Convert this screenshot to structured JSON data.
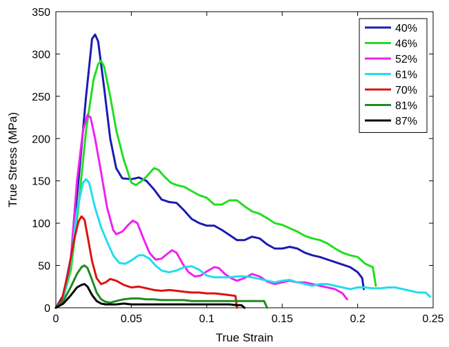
{
  "chart_data": {
    "type": "line",
    "xlabel": "True Strain",
    "ylabel": "True Stress (MPa)",
    "xlim": [
      0,
      0.25
    ],
    "ylim": [
      0,
      350
    ],
    "x_ticks": [
      0,
      0.05,
      0.1,
      0.15,
      0.2,
      0.25
    ],
    "x_tick_labels": [
      "0",
      "0.05",
      "0.1",
      "0.15",
      "0.2",
      "0.25"
    ],
    "y_ticks": [
      0,
      50,
      100,
      150,
      200,
      250,
      300,
      350
    ],
    "y_tick_labels": [
      "0",
      "50",
      "100",
      "150",
      "200",
      "250",
      "300",
      "350"
    ],
    "grid": false,
    "legend_position": "top-right",
    "series": [
      {
        "name": "40%",
        "color": "#1a1ab4",
        "points": [
          [
            0,
            0
          ],
          [
            0.005,
            15
          ],
          [
            0.01,
            60
          ],
          [
            0.015,
            150
          ],
          [
            0.02,
            250
          ],
          [
            0.024,
            318
          ],
          [
            0.026,
            323
          ],
          [
            0.028,
            315
          ],
          [
            0.032,
            260
          ],
          [
            0.036,
            200
          ],
          [
            0.04,
            165
          ],
          [
            0.044,
            153
          ],
          [
            0.05,
            152
          ],
          [
            0.055,
            154
          ],
          [
            0.06,
            150
          ],
          [
            0.065,
            140
          ],
          [
            0.07,
            128
          ],
          [
            0.075,
            125
          ],
          [
            0.08,
            124
          ],
          [
            0.085,
            115
          ],
          [
            0.09,
            105
          ],
          [
            0.095,
            100
          ],
          [
            0.1,
            97
          ],
          [
            0.105,
            97
          ],
          [
            0.11,
            92
          ],
          [
            0.115,
            86
          ],
          [
            0.12,
            80
          ],
          [
            0.125,
            80
          ],
          [
            0.13,
            84
          ],
          [
            0.135,
            82
          ],
          [
            0.14,
            75
          ],
          [
            0.145,
            70
          ],
          [
            0.15,
            70
          ],
          [
            0.155,
            72
          ],
          [
            0.16,
            70
          ],
          [
            0.165,
            65
          ],
          [
            0.17,
            62
          ],
          [
            0.175,
            60
          ],
          [
            0.18,
            57
          ],
          [
            0.185,
            54
          ],
          [
            0.19,
            51
          ],
          [
            0.195,
            48
          ],
          [
            0.2,
            42
          ],
          [
            0.203,
            35
          ],
          [
            0.204,
            22
          ]
        ]
      },
      {
        "name": "46%",
        "color": "#22dd22",
        "points": [
          [
            0,
            0
          ],
          [
            0.005,
            12
          ],
          [
            0.01,
            45
          ],
          [
            0.015,
            120
          ],
          [
            0.02,
            210
          ],
          [
            0.025,
            270
          ],
          [
            0.028,
            288
          ],
          [
            0.03,
            292
          ],
          [
            0.032,
            285
          ],
          [
            0.036,
            250
          ],
          [
            0.04,
            210
          ],
          [
            0.045,
            175
          ],
          [
            0.05,
            148
          ],
          [
            0.053,
            145
          ],
          [
            0.057,
            150
          ],
          [
            0.06,
            155
          ],
          [
            0.065,
            165
          ],
          [
            0.068,
            163
          ],
          [
            0.072,
            155
          ],
          [
            0.076,
            148
          ],
          [
            0.08,
            145
          ],
          [
            0.085,
            143
          ],
          [
            0.09,
            138
          ],
          [
            0.095,
            133
          ],
          [
            0.1,
            130
          ],
          [
            0.105,
            122
          ],
          [
            0.11,
            122
          ],
          [
            0.115,
            127
          ],
          [
            0.12,
            127
          ],
          [
            0.125,
            120
          ],
          [
            0.13,
            114
          ],
          [
            0.135,
            111
          ],
          [
            0.14,
            106
          ],
          [
            0.145,
            100
          ],
          [
            0.15,
            98
          ],
          [
            0.155,
            94
          ],
          [
            0.16,
            90
          ],
          [
            0.165,
            85
          ],
          [
            0.17,
            82
          ],
          [
            0.175,
            80
          ],
          [
            0.18,
            76
          ],
          [
            0.185,
            70
          ],
          [
            0.19,
            65
          ],
          [
            0.195,
            62
          ],
          [
            0.2,
            60
          ],
          [
            0.205,
            52
          ],
          [
            0.21,
            48
          ],
          [
            0.212,
            26
          ]
        ]
      },
      {
        "name": "52%",
        "color": "#ee22ee",
        "points": [
          [
            0,
            0
          ],
          [
            0.005,
            10
          ],
          [
            0.01,
            60
          ],
          [
            0.014,
            150
          ],
          [
            0.018,
            210
          ],
          [
            0.021,
            228
          ],
          [
            0.023,
            225
          ],
          [
            0.026,
            200
          ],
          [
            0.03,
            160
          ],
          [
            0.034,
            118
          ],
          [
            0.038,
            92
          ],
          [
            0.04,
            87
          ],
          [
            0.044,
            90
          ],
          [
            0.048,
            98
          ],
          [
            0.051,
            103
          ],
          [
            0.054,
            100
          ],
          [
            0.058,
            82
          ],
          [
            0.062,
            65
          ],
          [
            0.066,
            57
          ],
          [
            0.07,
            58
          ],
          [
            0.074,
            64
          ],
          [
            0.077,
            68
          ],
          [
            0.08,
            65
          ],
          [
            0.084,
            52
          ],
          [
            0.088,
            42
          ],
          [
            0.092,
            37
          ],
          [
            0.096,
            38
          ],
          [
            0.1,
            43
          ],
          [
            0.105,
            48
          ],
          [
            0.108,
            47
          ],
          [
            0.112,
            40
          ],
          [
            0.116,
            35
          ],
          [
            0.12,
            32
          ],
          [
            0.125,
            35
          ],
          [
            0.13,
            40
          ],
          [
            0.135,
            37
          ],
          [
            0.14,
            31
          ],
          [
            0.145,
            28
          ],
          [
            0.15,
            30
          ],
          [
            0.155,
            32
          ],
          [
            0.16,
            30
          ],
          [
            0.165,
            30
          ],
          [
            0.17,
            28
          ],
          [
            0.175,
            26
          ],
          [
            0.18,
            24
          ],
          [
            0.185,
            22
          ],
          [
            0.19,
            17
          ],
          [
            0.193,
            10
          ]
        ]
      },
      {
        "name": "61%",
        "color": "#22ddee",
        "points": [
          [
            0,
            0
          ],
          [
            0.005,
            10
          ],
          [
            0.01,
            55
          ],
          [
            0.014,
            115
          ],
          [
            0.018,
            148
          ],
          [
            0.02,
            152
          ],
          [
            0.022,
            148
          ],
          [
            0.026,
            118
          ],
          [
            0.03,
            95
          ],
          [
            0.034,
            78
          ],
          [
            0.038,
            62
          ],
          [
            0.042,
            53
          ],
          [
            0.046,
            52
          ],
          [
            0.05,
            56
          ],
          [
            0.055,
            62
          ],
          [
            0.058,
            62
          ],
          [
            0.062,
            58
          ],
          [
            0.066,
            50
          ],
          [
            0.07,
            44
          ],
          [
            0.075,
            42
          ],
          [
            0.08,
            44
          ],
          [
            0.085,
            48
          ],
          [
            0.09,
            49
          ],
          [
            0.095,
            45
          ],
          [
            0.1,
            38
          ],
          [
            0.105,
            36
          ],
          [
            0.11,
            36
          ],
          [
            0.115,
            36
          ],
          [
            0.12,
            37
          ],
          [
            0.125,
            37
          ],
          [
            0.13,
            36
          ],
          [
            0.135,
            34
          ],
          [
            0.14,
            32
          ],
          [
            0.145,
            30
          ],
          [
            0.15,
            32
          ],
          [
            0.155,
            33
          ],
          [
            0.16,
            30
          ],
          [
            0.165,
            28
          ],
          [
            0.17,
            26
          ],
          [
            0.175,
            28
          ],
          [
            0.18,
            28
          ],
          [
            0.185,
            26
          ],
          [
            0.19,
            24
          ],
          [
            0.195,
            22
          ],
          [
            0.2,
            24
          ],
          [
            0.205,
            24
          ],
          [
            0.21,
            23
          ],
          [
            0.215,
            23
          ],
          [
            0.22,
            24
          ],
          [
            0.225,
            24
          ],
          [
            0.23,
            22
          ],
          [
            0.235,
            20
          ],
          [
            0.24,
            18
          ],
          [
            0.245,
            18
          ],
          [
            0.248,
            13
          ]
        ]
      },
      {
        "name": "70%",
        "color": "#dd1111",
        "points": [
          [
            0,
            0
          ],
          [
            0.004,
            10
          ],
          [
            0.008,
            40
          ],
          [
            0.012,
            80
          ],
          [
            0.015,
            102
          ],
          [
            0.017,
            108
          ],
          [
            0.019,
            104
          ],
          [
            0.021,
            85
          ],
          [
            0.024,
            55
          ],
          [
            0.027,
            35
          ],
          [
            0.03,
            28
          ],
          [
            0.033,
            30
          ],
          [
            0.036,
            34
          ],
          [
            0.04,
            32
          ],
          [
            0.045,
            27
          ],
          [
            0.05,
            24
          ],
          [
            0.055,
            25
          ],
          [
            0.06,
            23
          ],
          [
            0.065,
            21
          ],
          [
            0.07,
            20
          ],
          [
            0.075,
            21
          ],
          [
            0.08,
            20
          ],
          [
            0.085,
            19
          ],
          [
            0.09,
            18
          ],
          [
            0.095,
            18
          ],
          [
            0.1,
            17
          ],
          [
            0.105,
            17
          ],
          [
            0.11,
            16
          ],
          [
            0.115,
            15
          ],
          [
            0.119,
            14
          ],
          [
            0.12,
            0
          ]
        ]
      },
      {
        "name": "81%",
        "color": "#1f8a1f",
        "points": [
          [
            0,
            0
          ],
          [
            0.005,
            8
          ],
          [
            0.01,
            25
          ],
          [
            0.014,
            40
          ],
          [
            0.017,
            48
          ],
          [
            0.019,
            50
          ],
          [
            0.021,
            47
          ],
          [
            0.024,
            33
          ],
          [
            0.027,
            18
          ],
          [
            0.03,
            10
          ],
          [
            0.033,
            7
          ],
          [
            0.036,
            6
          ],
          [
            0.04,
            8
          ],
          [
            0.045,
            10
          ],
          [
            0.05,
            11
          ],
          [
            0.055,
            11
          ],
          [
            0.06,
            10
          ],
          [
            0.065,
            10
          ],
          [
            0.07,
            9
          ],
          [
            0.075,
            9
          ],
          [
            0.08,
            9
          ],
          [
            0.085,
            9
          ],
          [
            0.09,
            8
          ],
          [
            0.095,
            8
          ],
          [
            0.1,
            8
          ],
          [
            0.105,
            8
          ],
          [
            0.11,
            8
          ],
          [
            0.115,
            8
          ],
          [
            0.12,
            8
          ],
          [
            0.125,
            8
          ],
          [
            0.13,
            8
          ],
          [
            0.135,
            8
          ],
          [
            0.138,
            8
          ],
          [
            0.14,
            0
          ]
        ]
      },
      {
        "name": "87%",
        "color": "#000000",
        "points": [
          [
            0,
            0
          ],
          [
            0.005,
            5
          ],
          [
            0.01,
            15
          ],
          [
            0.014,
            24
          ],
          [
            0.017,
            27
          ],
          [
            0.019,
            28
          ],
          [
            0.021,
            25
          ],
          [
            0.024,
            15
          ],
          [
            0.027,
            8
          ],
          [
            0.03,
            5
          ],
          [
            0.033,
            4
          ],
          [
            0.036,
            4
          ],
          [
            0.04,
            4
          ],
          [
            0.045,
            5
          ],
          [
            0.05,
            4
          ],
          [
            0.055,
            4
          ],
          [
            0.06,
            4
          ],
          [
            0.065,
            4
          ],
          [
            0.07,
            4
          ],
          [
            0.075,
            4
          ],
          [
            0.08,
            4
          ],
          [
            0.085,
            4
          ],
          [
            0.09,
            4
          ],
          [
            0.095,
            4
          ],
          [
            0.1,
            4
          ],
          [
            0.105,
            4
          ],
          [
            0.11,
            4
          ],
          [
            0.115,
            4
          ],
          [
            0.12,
            3
          ],
          [
            0.123,
            3
          ],
          [
            0.125,
            0
          ]
        ]
      }
    ]
  }
}
